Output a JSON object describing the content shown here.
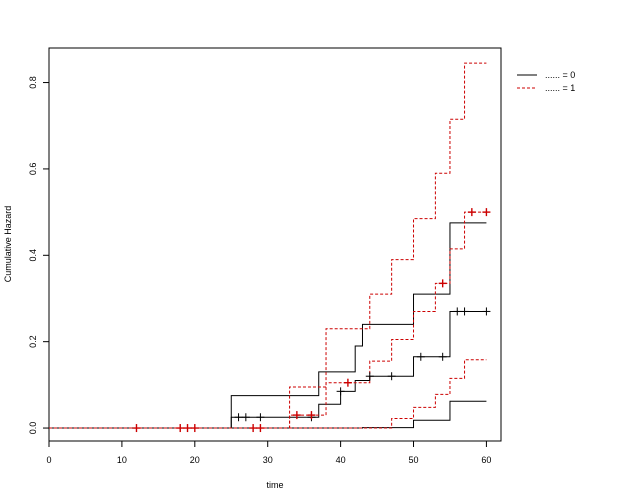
{
  "chart_data": {
    "type": "line",
    "subtype": "step",
    "title": "",
    "xlabel": "time",
    "ylabel": "Cumulative Hazard",
    "xlim": [
      0,
      62
    ],
    "ylim": [
      -0.03,
      0.88
    ],
    "x_ticks": [
      "0",
      "10",
      "20",
      "30",
      "40",
      "50",
      "60"
    ],
    "y_ticks": [
      "0.0",
      "0.2",
      "0.4",
      "0.6",
      "0.8"
    ],
    "grid": false,
    "legend_position": "top-right",
    "legend": [
      {
        "label": "...... = 0",
        "color": "#000000",
        "dash": "solid"
      },
      {
        "label": "...... = 1",
        "color": "#cc0000",
        "dash": "dashed"
      }
    ],
    "series": [
      {
        "group": "0",
        "role": "estimate",
        "color": "#000000",
        "dash": "solid",
        "steps": [
          [
            0,
            0
          ],
          [
            25,
            0.025
          ],
          [
            37,
            0.055
          ],
          [
            40,
            0.085
          ],
          [
            42,
            0.11
          ],
          [
            44,
            0.12
          ],
          [
            50,
            0.165
          ],
          [
            55,
            0.27
          ],
          [
            60,
            0.27
          ]
        ],
        "censor_x": [
          26,
          27,
          29,
          36,
          40,
          44,
          47,
          51,
          54,
          56,
          57,
          60
        ]
      },
      {
        "group": "0",
        "role": "upper",
        "color": "#000000",
        "dash": "solid",
        "steps": [
          [
            0,
            0
          ],
          [
            25,
            0.075
          ],
          [
            37,
            0.13
          ],
          [
            42,
            0.19
          ],
          [
            43,
            0.24
          ],
          [
            50,
            0.31
          ],
          [
            55,
            0.475
          ],
          [
            60,
            0.475
          ]
        ],
        "censor_x": []
      },
      {
        "group": "0",
        "role": "lower",
        "color": "#000000",
        "dash": "solid",
        "steps": [
          [
            0,
            0
          ],
          [
            43,
            0.001
          ],
          [
            50,
            0.018
          ],
          [
            55,
            0.062
          ],
          [
            60,
            0.062
          ]
        ],
        "censor_x": []
      },
      {
        "group": "1",
        "role": "estimate",
        "color": "#cc0000",
        "dash": "dashed",
        "steps": [
          [
            0,
            0
          ],
          [
            33,
            0.03
          ],
          [
            38,
            0.105
          ],
          [
            44,
            0.155
          ],
          [
            47,
            0.205
          ],
          [
            50,
            0.27
          ],
          [
            53,
            0.335
          ],
          [
            55,
            0.415
          ],
          [
            56,
            0.415
          ],
          [
            57,
            0.5
          ],
          [
            60,
            0.5
          ]
        ],
        "censor_x": [
          12,
          18,
          19,
          20,
          28,
          29,
          34,
          36,
          41,
          54,
          58,
          60
        ]
      },
      {
        "group": "1",
        "role": "upper",
        "color": "#cc0000",
        "dash": "dashed",
        "steps": [
          [
            0,
            0
          ],
          [
            33,
            0.095
          ],
          [
            38,
            0.23
          ],
          [
            44,
            0.31
          ],
          [
            47,
            0.39
          ],
          [
            50,
            0.485
          ],
          [
            53,
            0.59
          ],
          [
            55,
            0.715
          ],
          [
            57,
            0.845
          ],
          [
            60,
            0.845
          ]
        ],
        "censor_x": []
      },
      {
        "group": "1",
        "role": "lower",
        "color": "#cc0000",
        "dash": "dashed",
        "steps": [
          [
            0,
            0
          ],
          [
            47,
            0.022
          ],
          [
            50,
            0.048
          ],
          [
            53,
            0.078
          ],
          [
            55,
            0.115
          ],
          [
            57,
            0.158
          ],
          [
            60,
            0.158
          ]
        ],
        "censor_x": []
      }
    ]
  }
}
